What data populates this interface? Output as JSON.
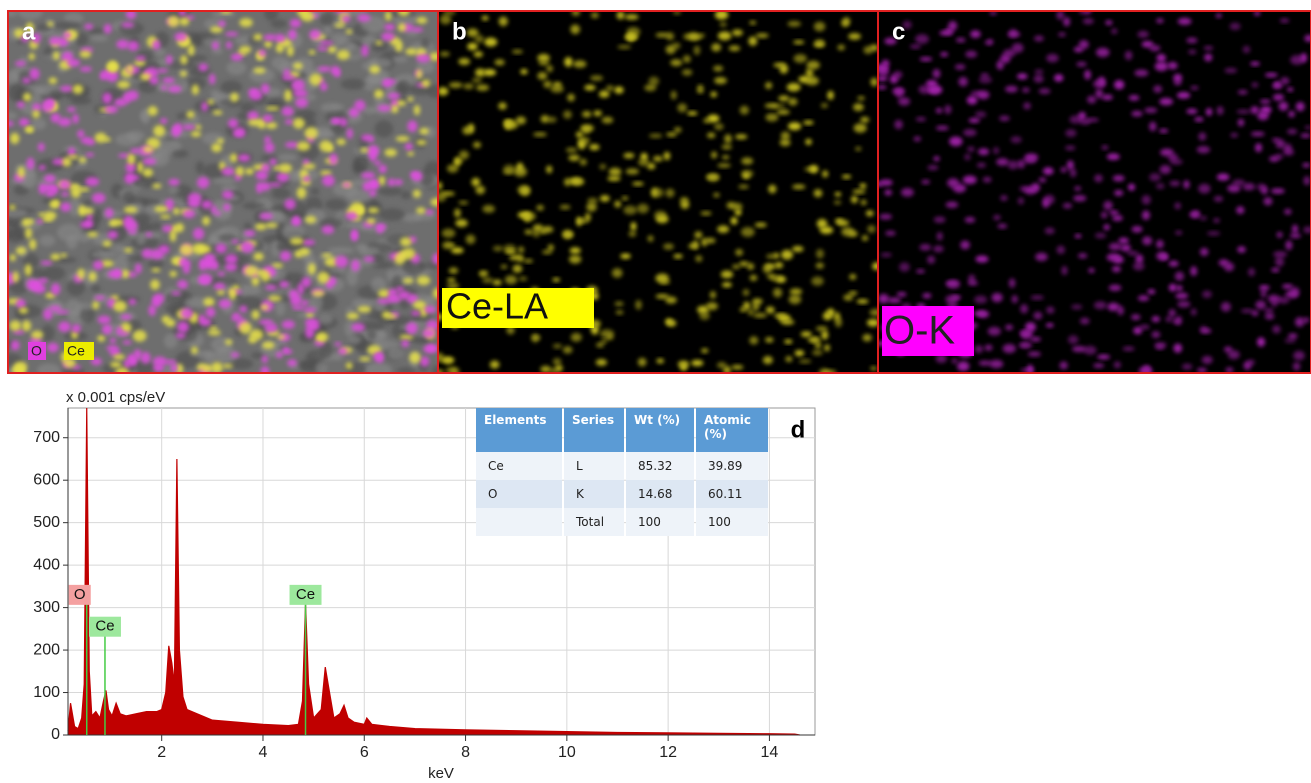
{
  "panels": [
    {
      "label": "a",
      "legend": [
        "O",
        "Ce"
      ]
    },
    {
      "label": "b",
      "map_label": "Ce-LA"
    },
    {
      "label": "c",
      "map_label": "O-K"
    }
  ],
  "chart_data": {
    "type": "area",
    "panel_label": "d",
    "y_unit": "x 0.001 cps/eV",
    "x_label": "keV",
    "x": [
      0.15,
      0.2,
      0.28,
      0.35,
      0.42,
      0.47,
      0.52,
      0.57,
      0.62,
      0.7,
      0.78,
      0.85,
      0.9,
      0.95,
      1.02,
      1.1,
      1.18,
      1.3,
      1.5,
      1.7,
      1.9,
      2.0,
      2.08,
      2.14,
      2.2,
      2.25,
      2.3,
      2.35,
      2.42,
      2.5,
      2.7,
      3.0,
      3.5,
      4.0,
      4.5,
      4.7,
      4.78,
      4.84,
      4.9,
      5.0,
      5.15,
      5.23,
      5.3,
      5.4,
      5.52,
      5.6,
      5.68,
      5.8,
      6.0,
      6.05,
      6.15,
      6.5,
      7.0,
      8.0,
      9.0,
      10.0,
      11.0,
      12.0,
      13.0,
      14.0,
      14.5,
      14.6
    ],
    "values": [
      10,
      75,
      20,
      15,
      40,
      120,
      770,
      150,
      45,
      55,
      40,
      80,
      105,
      60,
      45,
      75,
      50,
      45,
      50,
      55,
      55,
      60,
      100,
      210,
      170,
      120,
      650,
      200,
      90,
      60,
      50,
      35,
      30,
      25,
      22,
      25,
      80,
      310,
      120,
      40,
      60,
      160,
      110,
      40,
      50,
      70,
      40,
      30,
      25,
      40,
      25,
      20,
      15,
      12,
      10,
      8,
      6,
      5,
      4,
      3,
      2,
      0
    ],
    "color": "#c00000",
    "xlim": [
      0.15,
      14.9
    ],
    "ylim": [
      0,
      770
    ],
    "xticks": [
      2,
      4,
      6,
      8,
      10,
      12,
      14
    ],
    "yticks": [
      0,
      100,
      200,
      300,
      400,
      500,
      600,
      700
    ],
    "grid": true,
    "peak_labels": [
      {
        "label": "O",
        "x": 0.52,
        "y": 330
      },
      {
        "label": "Ce",
        "x": 0.88,
        "y": 255
      },
      {
        "label": "Ce",
        "x": 4.84,
        "y": 330
      }
    ]
  },
  "table": {
    "header": [
      "Elements",
      "Series",
      "Wt (%)",
      "Atomic (%)"
    ],
    "rows": [
      [
        "Ce",
        "L",
        85.32,
        39.89
      ],
      [
        "O",
        "K",
        14.68,
        60.11
      ],
      [
        null,
        "Total",
        100,
        100
      ]
    ]
  }
}
